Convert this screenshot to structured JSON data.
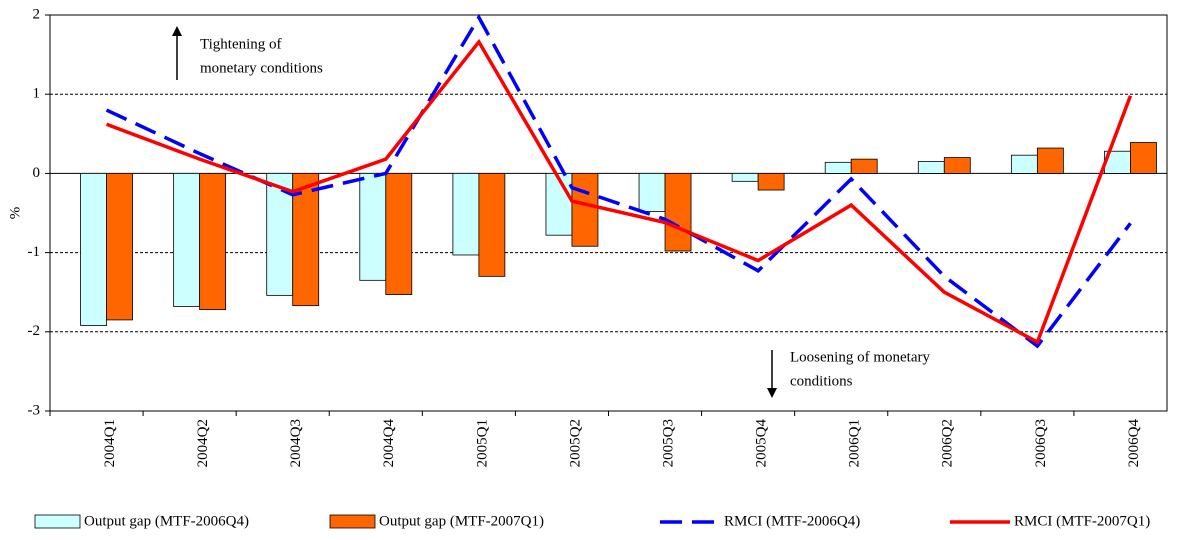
{
  "chart_data": {
    "type": "bar-line",
    "ylabel": "%",
    "categories": [
      "2004Q1",
      "2004Q2",
      "2004Q3",
      "2004Q4",
      "2005Q1",
      "2005Q2",
      "2005Q3",
      "2005Q4",
      "2006Q1",
      "2006Q2",
      "2006Q3",
      "2006Q4"
    ],
    "series": [
      {
        "name": "Output gap (MTF-2006Q4)",
        "kind": "bar",
        "color": "#ccffff",
        "values": [
          -1.92,
          -1.68,
          -1.54,
          -1.35,
          -1.03,
          -0.78,
          -0.48,
          -0.1,
          0.14,
          0.15,
          0.23,
          0.28
        ]
      },
      {
        "name": "Output gap (MTF-2007Q1)",
        "kind": "bar",
        "color": "#ff6600",
        "values": [
          -1.85,
          -1.72,
          -1.67,
          -1.53,
          -1.3,
          -0.92,
          -0.98,
          -0.21,
          0.18,
          0.2,
          0.32,
          0.39
        ]
      },
      {
        "name": "RMCI (MTF-2006Q4)",
        "kind": "dashed-line",
        "color": "#0000ff",
        "values": [
          0.8,
          0.25,
          -0.27,
          0.0,
          1.97,
          -0.18,
          -0.58,
          -1.23,
          -0.07,
          -1.3,
          -2.18,
          -0.63
        ]
      },
      {
        "name": "RMCI (MTF-2007Q1)",
        "kind": "line",
        "color": "#ff0000",
        "values": [
          0.62,
          0.18,
          -0.23,
          0.18,
          1.66,
          -0.35,
          -0.62,
          -1.1,
          -0.4,
          -1.5,
          -2.13,
          0.98
        ]
      }
    ],
    "annotations": [
      [
        "Tightening of",
        "monetary conditions"
      ],
      [
        "Loosening of monetary",
        "conditions"
      ]
    ],
    "ylim": [
      -3,
      2
    ],
    "yticks": [
      -3,
      -2,
      -1,
      0,
      1,
      2
    ],
    "grid": true
  }
}
